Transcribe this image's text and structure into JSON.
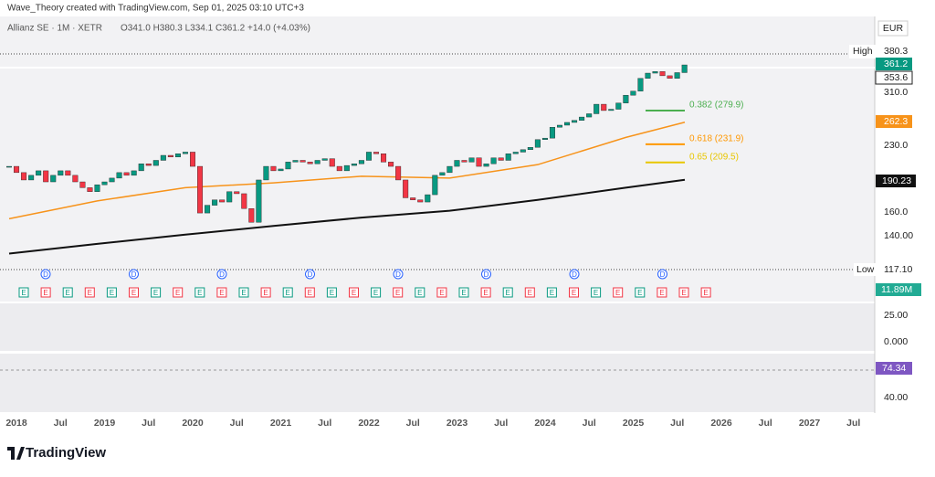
{
  "header": {
    "credit": "Wave_Theory created with TradingView.com, Sep 01, 2025 03:10 UTC+3",
    "symbol": "Allianz SE · 1M · XETR",
    "ohlc": "O341.0 H380.3 L334.1 C361.2 +14.0 (+4.03%)"
  },
  "price_axis": {
    "currency": "EUR",
    "high_label": "High",
    "high": "380.3",
    "last": "361.2",
    "prev": "353.6",
    "ticks": [
      "310.0",
      "230.0",
      "160.0",
      "140.00"
    ],
    "ma_orange": "262.3",
    "ma_black": "190.23",
    "low_label": "Low",
    "low": "117.10",
    "volume": "11.89M"
  },
  "fib": [
    {
      "label": "0.382 (279.9)",
      "value": 279.9,
      "color": "#4caf50"
    },
    {
      "label": "0.618 (231.9)",
      "value": 231.9,
      "color": "#ff9800"
    },
    {
      "label": "0.65 (209.5)",
      "value": 209.5,
      "color": "#e8c600"
    }
  ],
  "candles": {
    "log_scale": true,
    "up_color": "#089981",
    "down_color": "#f23645",
    "closes": [
      205,
      198,
      190,
      195,
      200,
      188,
      195,
      200,
      195,
      188,
      182,
      178,
      185,
      188,
      192,
      198,
      195,
      200,
      208,
      206,
      212,
      218,
      216,
      220,
      222,
      205,
      158,
      165,
      170,
      168,
      178,
      176,
      162,
      150,
      190,
      205,
      200,
      202,
      210,
      212,
      210,
      208,
      212,
      214,
      205,
      200,
      206,
      208,
      212,
      222,
      220,
      210,
      205,
      190,
      172,
      170,
      168,
      175,
      195,
      198,
      205,
      212,
      210,
      215,
      205,
      208,
      215,
      212,
      220,
      222,
      225,
      228,
      238,
      240,
      255,
      258,
      262,
      265,
      270,
      275,
      290,
      280,
      282,
      292,
      305,
      312,
      335,
      345,
      348,
      340,
      335,
      346,
      361.2
    ]
  },
  "moving_averages": [
    {
      "color": "#f7931a",
      "x": [
        2018,
        2019,
        2020,
        2021,
        2022,
        2023,
        2024,
        2025,
        2025.67
      ],
      "values": [
        153,
        169,
        182,
        187,
        194,
        192,
        207,
        241,
        262.3
      ]
    },
    {
      "color": "#111111",
      "x": [
        2018,
        2019,
        2020,
        2021,
        2022,
        2023,
        2024,
        2025,
        2025.67
      ],
      "values": [
        126,
        133,
        140,
        147,
        154,
        160,
        170,
        182,
        190.23
      ]
    }
  ],
  "events": {
    "dividend": "D",
    "earnings": "E"
  },
  "macd": {
    "ticks": [
      "25.00",
      "0.000"
    ]
  },
  "rsi": {
    "value": "74.34",
    "ticks": [
      "40.00"
    ]
  },
  "time_axis": [
    "2018",
    "Jul",
    "2019",
    "Jul",
    "2020",
    "Jul",
    "2021",
    "Jul",
    "2022",
    "Jul",
    "2023",
    "Jul",
    "2024",
    "Jul",
    "2025",
    "Jul",
    "2026",
    "Jul",
    "2027",
    "Jul"
  ],
  "footer": {
    "logo": "TradingView"
  }
}
